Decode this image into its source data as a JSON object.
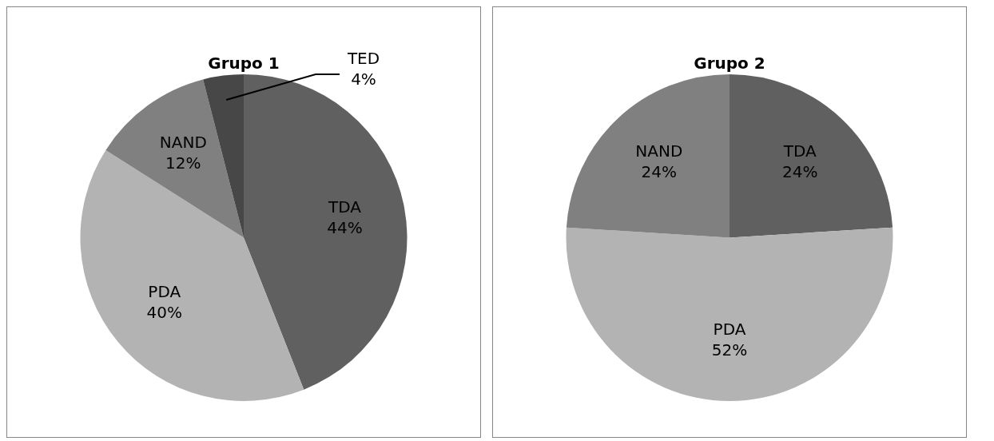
{
  "chart_data": [
    {
      "type": "pie",
      "title": "Grupo 1",
      "categories": [
        "TDA",
        "PDA",
        "NAND",
        "TED"
      ],
      "values": [
        44,
        40,
        12,
        4
      ],
      "colors": [
        "#606060",
        "#b3b3b3",
        "#808080",
        "#474747"
      ],
      "value_labels": [
        "44%",
        "40%",
        "12%",
        "4%"
      ]
    },
    {
      "type": "pie",
      "title": "Grupo 2",
      "categories": [
        "TDA",
        "PDA",
        "NAND"
      ],
      "values": [
        24,
        52,
        24
      ],
      "colors": [
        "#606060",
        "#b3b3b3",
        "#808080"
      ],
      "value_labels": [
        "24%",
        "52%",
        "24%"
      ]
    }
  ]
}
